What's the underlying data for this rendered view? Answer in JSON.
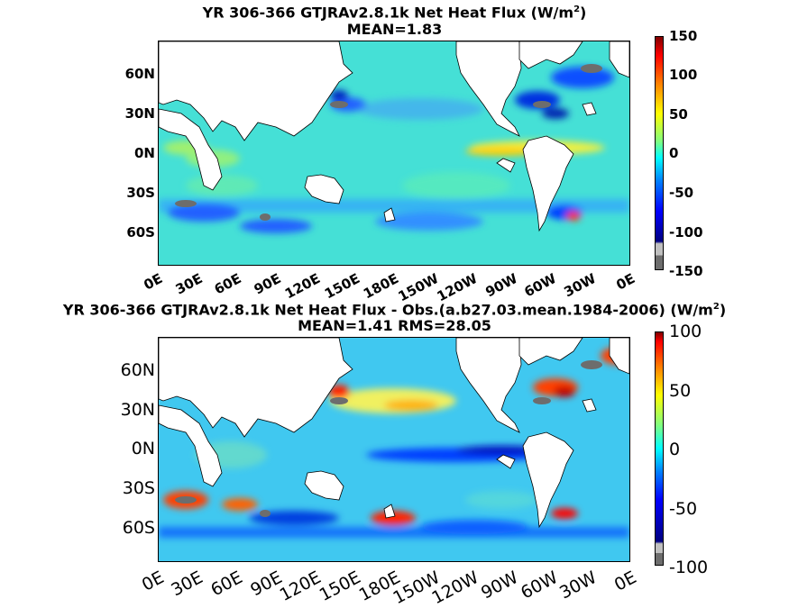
{
  "panel1": {
    "title_main": "YR 306-366 GTJRAv2.8.1k  Net Heat Flux (W/m",
    "title_sup": "2",
    "title_end": ")",
    "subtitle": "MEAN=1.83",
    "colorbar_ticks": [
      "150",
      "100",
      "50",
      "0",
      "-50",
      "-100",
      "-150"
    ]
  },
  "panel2": {
    "title_main": "YR 306-366 GTJRAv2.8.1k  Net Heat Flux - Obs.(a.b27.03.mean.1984-2006) (W/m",
    "title_sup": "2",
    "title_end": ")",
    "subtitle": "MEAN=1.41 RMS=28.05",
    "colorbar_ticks": [
      "100",
      "50",
      "0",
      "-50",
      "-100"
    ]
  },
  "lat_labels": [
    "60N",
    "30N",
    "0N",
    "30S",
    "60S"
  ],
  "lon_labels": [
    "0E",
    "30E",
    "60E",
    "90E",
    "120E",
    "150E",
    "180E",
    "150W",
    "120W",
    "90W",
    "60W",
    "30W",
    "0E"
  ],
  "colors": {
    "land": "#ffffff",
    "ocean_base": "#45e0d6",
    "sea_ice": "#6d6d6d",
    "colormap": [
      "#000080",
      "#0000ff",
      "#0080ff",
      "#00ffff",
      "#80ff80",
      "#ffff00",
      "#ff8000",
      "#ff0000",
      "#800000"
    ]
  }
}
